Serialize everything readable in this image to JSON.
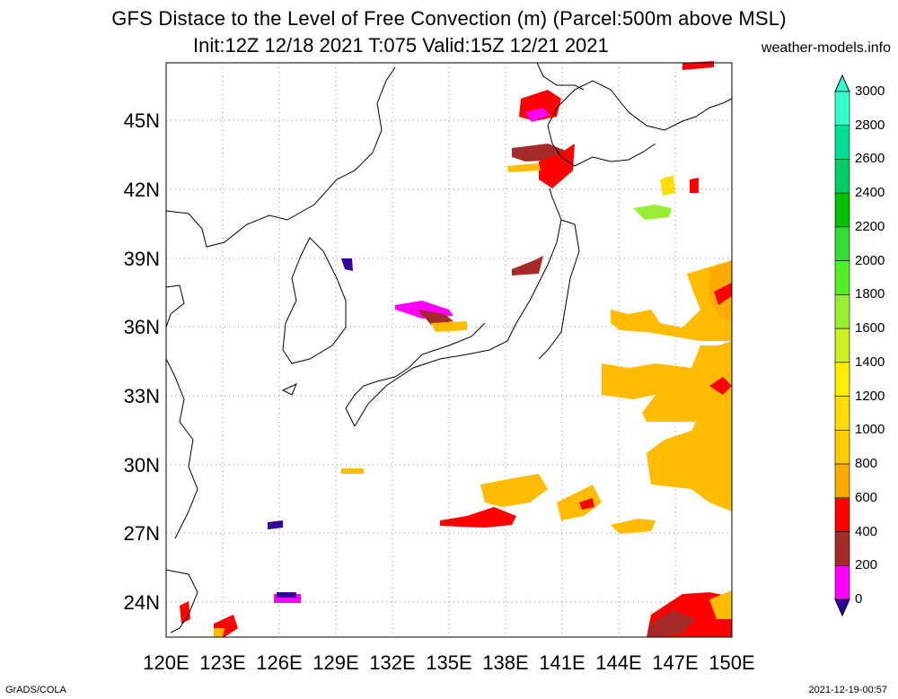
{
  "title_line1": "GFS Distace to the Level of Free Convection (m) (Parcel:500m above MSL)",
  "title_line2": "Init:12Z 12/18 2021 T:075 Valid:15Z 12/21 2021",
  "site": "weather-models.info",
  "lat_labels": [
    "45N",
    "42N",
    "39N",
    "36N",
    "33N",
    "30N",
    "27N",
    "24N"
  ],
  "lon_labels": [
    "120E",
    "123E",
    "126E",
    "129E",
    "132E",
    "135E",
    "138E",
    "141E",
    "144E",
    "147E",
    "150E"
  ],
  "colorbar": {
    "labels": [
      "3000",
      "2800",
      "2600",
      "2400",
      "2200",
      "2000",
      "1800",
      "1600",
      "1400",
      "1200",
      "1000",
      "800",
      "600",
      "400",
      "200",
      "0"
    ],
    "colors": [
      "#33ffcc",
      "#00dd99",
      "#00cc66",
      "#00c000",
      "#33dd33",
      "#55ee22",
      "#99ee33",
      "#ccee22",
      "#ffee00",
      "#ffdd00",
      "#ffcc00",
      "#ffaa00",
      "#ff0000",
      "#a52a2a",
      "#ff00ff",
      "#330099"
    ]
  },
  "footer_left": "GrADS/COLA",
  "footer_right": "2021-12-19-00:57"
}
